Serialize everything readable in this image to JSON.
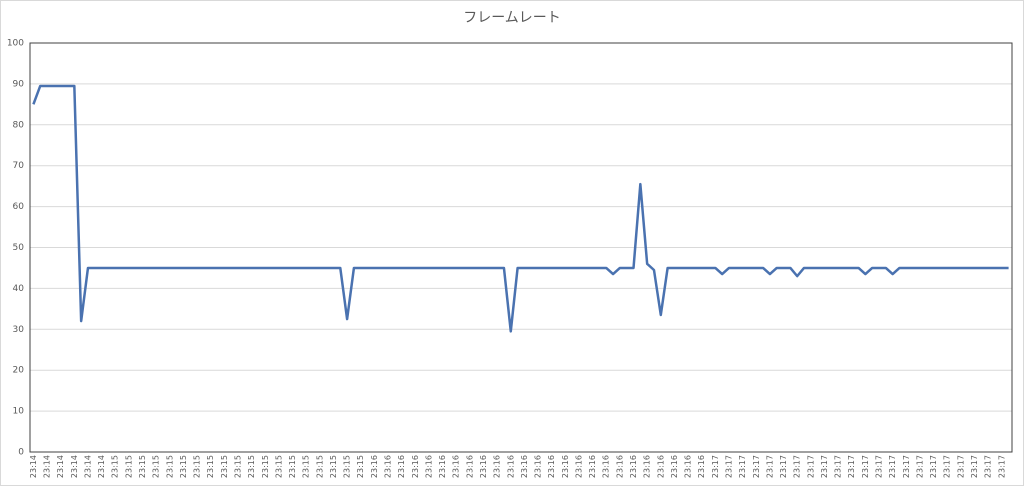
{
  "chart_data": {
    "type": "line",
    "title": "フレームレート",
    "color": "#4a72b0",
    "grid": true,
    "ylim": [
      0,
      100
    ],
    "yticks": [
      0,
      10,
      20,
      30,
      40,
      50,
      60,
      70,
      80,
      90,
      100
    ],
    "categories": [
      "23:14",
      null,
      "23:14",
      null,
      "23:14",
      null,
      "23:14",
      null,
      "23:14",
      null,
      "23:14",
      null,
      "23:15",
      null,
      "23:15",
      null,
      "23:15",
      null,
      "23:15",
      null,
      "23:15",
      null,
      "23:15",
      null,
      "23:15",
      null,
      "23:15",
      null,
      "23:15",
      null,
      "23:15",
      null,
      "23:15",
      null,
      "23:15",
      null,
      "23:15",
      null,
      "23:15",
      null,
      "23:15",
      null,
      "23:15",
      null,
      "23:15",
      null,
      "23:15",
      null,
      "23:15",
      null,
      "23:16",
      null,
      "23:16",
      null,
      "23:16",
      null,
      "23:16",
      null,
      "23:16",
      null,
      "23:16",
      null,
      "23:16",
      null,
      "23:16",
      null,
      "23:16",
      null,
      "23:16",
      null,
      "23:16",
      null,
      "23:16",
      null,
      "23:16",
      null,
      "23:16",
      null,
      "23:16",
      null,
      "23:16",
      null,
      "23:16",
      null,
      "23:16",
      null,
      "23:16",
      null,
      "23:16",
      null,
      "23:16",
      null,
      "23:16",
      null,
      "23:16",
      null,
      "23:16",
      null,
      "23:16",
      null,
      "23:17",
      null,
      "23:17",
      null,
      "23:17",
      null,
      "23:17",
      null,
      "23:17",
      null,
      "23:17",
      null,
      "23:17",
      null,
      "23:17",
      null,
      "23:17",
      null,
      "23:17",
      null,
      "23:17",
      null,
      "23:17",
      null,
      "23:17",
      null,
      "23:17",
      null,
      "23:17",
      null,
      "23:17",
      null,
      "23:17",
      null,
      "23:17",
      null,
      "23:17",
      null,
      "23:17",
      null,
      "23:17",
      null,
      "23:17",
      null
    ],
    "values": [
      85,
      89.5,
      89.5,
      89.5,
      89.5,
      89.5,
      89.5,
      32,
      45,
      45,
      45,
      45,
      45,
      45,
      45,
      45,
      45,
      45,
      45,
      45,
      45,
      45,
      45,
      45,
      45,
      45,
      45,
      45,
      45,
      45,
      45,
      45,
      45,
      45,
      45,
      45,
      45,
      45,
      45,
      45,
      45,
      45,
      45,
      45,
      45,
      45,
      32.5,
      45,
      45,
      45,
      45,
      45,
      45,
      45,
      45,
      45,
      45,
      45,
      45,
      45,
      45,
      45,
      45,
      45,
      45,
      45,
      45,
      45,
      45,
      45,
      29.5,
      45,
      45,
      45,
      45,
      45,
      45,
      45,
      45,
      45,
      45,
      45,
      45,
      45,
      45,
      43.5,
      45,
      45,
      45,
      65.5,
      46,
      44.5,
      33.5,
      45,
      45,
      45,
      45,
      45,
      45,
      45,
      45,
      43.5,
      45,
      45,
      45,
      45,
      45,
      45,
      43.5,
      45,
      45,
      45,
      43,
      45,
      45,
      45,
      45,
      45,
      45,
      45,
      45,
      45,
      43.5,
      45,
      45,
      45,
      43.5,
      45,
      45,
      45,
      45,
      45,
      45,
      45,
      45,
      45,
      45,
      45,
      45,
      45,
      45,
      45,
      45,
      45
    ]
  }
}
